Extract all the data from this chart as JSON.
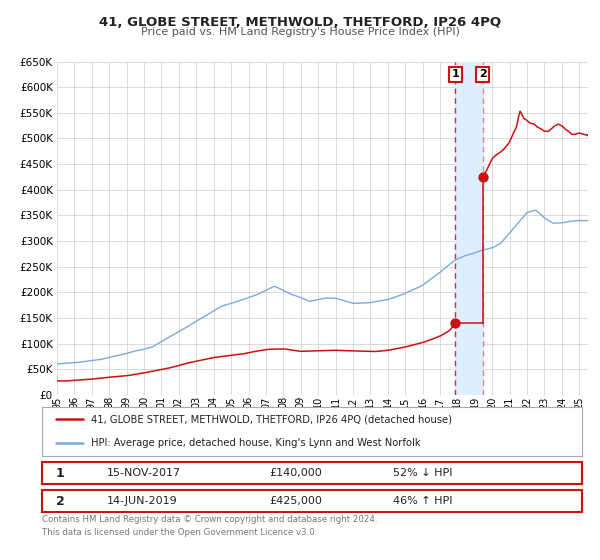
{
  "title": "41, GLOBE STREET, METHWOLD, THETFORD, IP26 4PQ",
  "subtitle": "Price paid vs. HM Land Registry's House Price Index (HPI)",
  "ylim": [
    0,
    650000
  ],
  "xlim_start": 1995.0,
  "xlim_end": 2025.5,
  "sale1_date": 2017.88,
  "sale1_price": 140000,
  "sale2_date": 2019.45,
  "sale2_price": 425000,
  "sale1_text": "15-NOV-2017",
  "sale1_amount": "£140,000",
  "sale1_hpi": "52% ↓ HPI",
  "sale2_text": "14-JUN-2019",
  "sale2_amount": "£425,000",
  "sale2_hpi": "46% ↑ HPI",
  "hpi_color": "#7aabdc",
  "price_color": "#cc1111",
  "vline1_color": "#cc3333",
  "vline2_color": "#dd8888",
  "vspan_color": "#ddeeff",
  "legend_line1": "41, GLOBE STREET, METHWOLD, THETFORD, IP26 4PQ (detached house)",
  "legend_line2": "HPI: Average price, detached house, King's Lynn and West Norfolk",
  "footer1": "Contains HM Land Registry data © Crown copyright and database right 2024.",
  "footer2": "This data is licensed under the Open Government Licence v3.0.",
  "background_color": "#ffffff",
  "grid_color": "#cccccc"
}
